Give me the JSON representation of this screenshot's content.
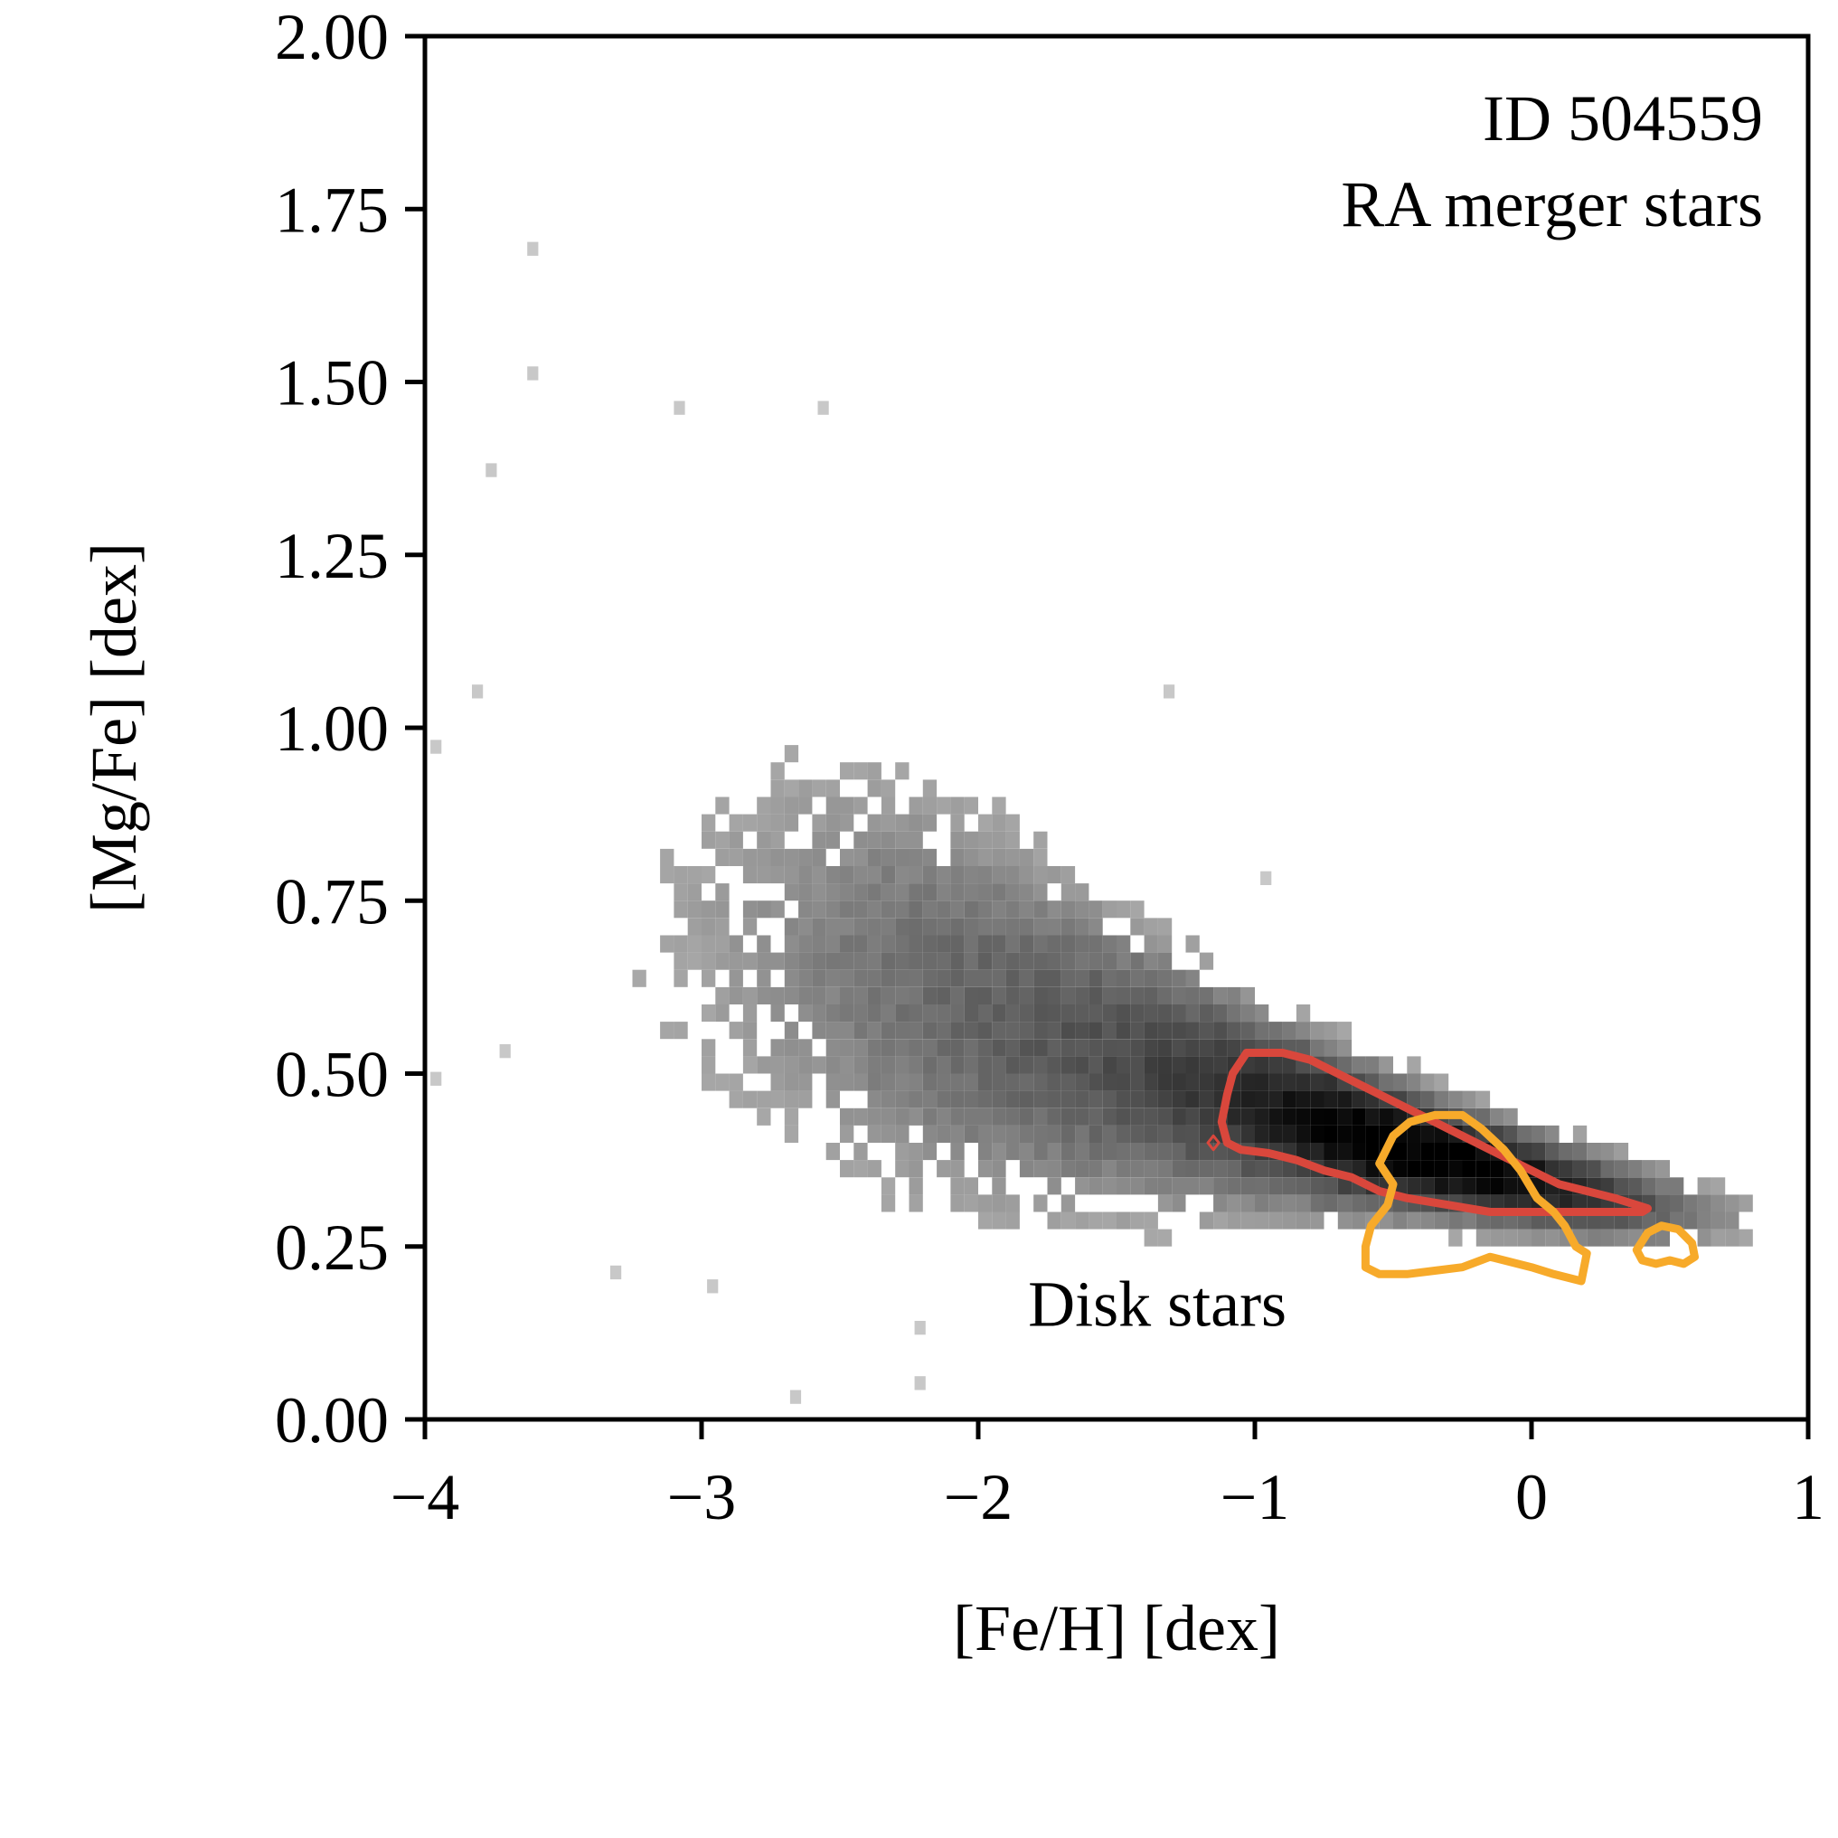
{
  "chart_data": {
    "type": "heatmap",
    "xlabel": "[Fe/H] [dex]",
    "ylabel": "[Mg/Fe] [dex]",
    "xlim": [
      -4,
      1
    ],
    "ylim": [
      0,
      2
    ],
    "xticks": [
      -4,
      -3,
      -2,
      -1,
      0,
      1
    ],
    "xtick_labels": [
      "−4",
      "−3",
      "−2",
      "−1",
      "0",
      "1"
    ],
    "yticks": [
      0,
      0.25,
      0.5,
      0.75,
      1.0,
      1.25,
      1.5,
      1.75,
      2.0
    ],
    "ytick_labels": [
      "0.00",
      "0.25",
      "0.50",
      "0.75",
      "1.00",
      "1.25",
      "1.50",
      "1.75",
      "2.00"
    ],
    "grid": false,
    "annotations": {
      "id_line": "ID 504559",
      "sample_line": "RA merger stars",
      "disk_label": "Disk stars"
    },
    "colors": {
      "merger_contour": "#d9473c",
      "disk_contour": "#f7aa2a",
      "disk_label": "#f7aa2a",
      "histogram_max": "#000000",
      "histogram_min": "#d0d0d0"
    },
    "histogram": {
      "bin_width_feh": 0.05,
      "bin_height_mgfe": 0.025,
      "description_of_density": "log-scaled 2D histogram of stars, densest near [Fe/H]=-0.35, [Mg/Fe]=0.36",
      "ridge": [
        {
          "feh": -2.9,
          "mgfe": 0.68,
          "width": 0.18
        },
        {
          "feh": -2.4,
          "mgfe": 0.63,
          "width": 0.17
        },
        {
          "feh": -1.9,
          "mgfe": 0.56,
          "width": 0.14
        },
        {
          "feh": -1.4,
          "mgfe": 0.49,
          "width": 0.1
        },
        {
          "feh": -1.0,
          "mgfe": 0.44,
          "width": 0.07
        },
        {
          "feh": -0.6,
          "mgfe": 0.39,
          "width": 0.05
        },
        {
          "feh": -0.3,
          "mgfe": 0.36,
          "width": 0.04
        },
        {
          "feh": 0.1,
          "mgfe": 0.32,
          "width": 0.035
        },
        {
          "feh": 0.5,
          "mgfe": 0.29,
          "width": 0.03
        },
        {
          "feh": 0.75,
          "mgfe": 0.28,
          "width": 0.025
        }
      ],
      "outliers": [
        {
          "feh": -3.63,
          "mgfe": 1.69
        },
        {
          "feh": -3.63,
          "mgfe": 1.51
        },
        {
          "feh": -2.58,
          "mgfe": 1.46
        },
        {
          "feh": -3.1,
          "mgfe": 1.46
        },
        {
          "feh": -3.78,
          "mgfe": 1.37
        },
        {
          "feh": -3.83,
          "mgfe": 1.05
        },
        {
          "feh": -3.98,
          "mgfe": 0.97
        },
        {
          "feh": -3.98,
          "mgfe": 0.49
        },
        {
          "feh": -3.73,
          "mgfe": 0.53
        },
        {
          "feh": -3.33,
          "mgfe": 0.21
        },
        {
          "feh": -2.98,
          "mgfe": 0.19
        },
        {
          "feh": -2.68,
          "mgfe": 0.03
        },
        {
          "feh": -2.23,
          "mgfe": 0.05
        },
        {
          "feh": -2.23,
          "mgfe": 0.13
        },
        {
          "feh": -1.33,
          "mgfe": 1.05
        },
        {
          "feh": -0.98,
          "mgfe": 0.78
        }
      ]
    },
    "series": [
      {
        "kind": "contour",
        "color_key": "merger_contour",
        "points": [
          [
            -1.08,
            0.5
          ],
          [
            -1.03,
            0.53
          ],
          [
            -0.98,
            0.53
          ],
          [
            -0.9,
            0.53
          ],
          [
            -0.8,
            0.52
          ],
          [
            -0.7,
            0.5
          ],
          [
            -0.6,
            0.48
          ],
          [
            -0.5,
            0.46
          ],
          [
            -0.4,
            0.44
          ],
          [
            -0.3,
            0.42
          ],
          [
            -0.2,
            0.4
          ],
          [
            -0.1,
            0.38
          ],
          [
            0.0,
            0.36
          ],
          [
            0.1,
            0.34
          ],
          [
            0.2,
            0.33
          ],
          [
            0.3,
            0.32
          ],
          [
            0.38,
            0.31
          ],
          [
            0.42,
            0.305
          ],
          [
            0.4,
            0.3
          ],
          [
            0.3,
            0.3
          ],
          [
            0.15,
            0.3
          ],
          [
            0.0,
            0.3
          ],
          [
            -0.15,
            0.3
          ],
          [
            -0.3,
            0.31
          ],
          [
            -0.45,
            0.32
          ],
          [
            -0.55,
            0.33
          ],
          [
            -0.65,
            0.35
          ],
          [
            -0.75,
            0.36
          ],
          [
            -0.85,
            0.375
          ],
          [
            -0.95,
            0.385
          ],
          [
            -1.05,
            0.39
          ],
          [
            -1.1,
            0.4
          ],
          [
            -1.12,
            0.43
          ],
          [
            -1.1,
            0.47
          ],
          [
            -1.08,
            0.5
          ]
        ]
      },
      {
        "kind": "contour",
        "color_key": "disk_contour",
        "points": [
          [
            -0.55,
            0.37
          ],
          [
            -0.5,
            0.41
          ],
          [
            -0.44,
            0.43
          ],
          [
            -0.35,
            0.44
          ],
          [
            -0.25,
            0.44
          ],
          [
            -0.18,
            0.42
          ],
          [
            -0.1,
            0.39
          ],
          [
            -0.04,
            0.36
          ],
          [
            0.02,
            0.32
          ],
          [
            0.08,
            0.3
          ],
          [
            0.12,
            0.28
          ],
          [
            0.16,
            0.25
          ],
          [
            0.2,
            0.24
          ],
          [
            0.18,
            0.2
          ],
          [
            0.08,
            0.21
          ],
          [
            0.0,
            0.22
          ],
          [
            -0.1,
            0.23
          ],
          [
            -0.15,
            0.235
          ],
          [
            -0.25,
            0.22
          ],
          [
            -0.35,
            0.215
          ],
          [
            -0.45,
            0.21
          ],
          [
            -0.55,
            0.21
          ],
          [
            -0.6,
            0.22
          ],
          [
            -0.6,
            0.25
          ],
          [
            -0.58,
            0.28
          ],
          [
            -0.52,
            0.31
          ],
          [
            -0.5,
            0.34
          ],
          [
            -0.55,
            0.37
          ]
        ]
      },
      {
        "kind": "contour",
        "color_key": "disk_contour",
        "points": [
          [
            0.38,
            0.245
          ],
          [
            0.42,
            0.27
          ],
          [
            0.47,
            0.28
          ],
          [
            0.53,
            0.275
          ],
          [
            0.58,
            0.255
          ],
          [
            0.59,
            0.235
          ],
          [
            0.55,
            0.225
          ],
          [
            0.5,
            0.23
          ],
          [
            0.45,
            0.225
          ],
          [
            0.4,
            0.23
          ],
          [
            0.38,
            0.245
          ]
        ]
      },
      {
        "kind": "contour",
        "color_key": "merger_contour",
        "points": [
          [
            -1.17,
            0.4
          ],
          [
            -1.15,
            0.41
          ],
          [
            -1.13,
            0.4
          ],
          [
            -1.15,
            0.39
          ],
          [
            -1.17,
            0.4
          ]
        ]
      }
    ]
  }
}
